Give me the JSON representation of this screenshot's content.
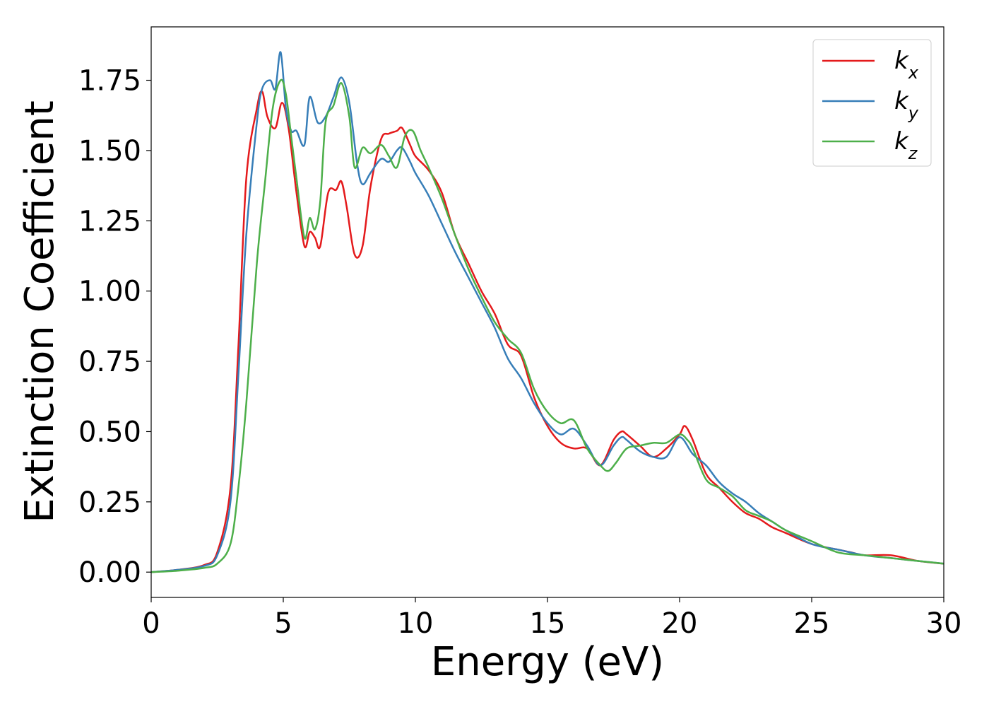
{
  "chart_data": {
    "type": "line",
    "xlabel": "Energy (eV)",
    "ylabel": "Extinction Coefficient",
    "xlim": [
      0,
      30
    ],
    "ylim": [
      -0.09,
      1.94
    ],
    "xticks": [
      0,
      5,
      10,
      15,
      20,
      25,
      30
    ],
    "xtick_labels": [
      "0",
      "5",
      "10",
      "15",
      "20",
      "25",
      "30"
    ],
    "yticks": [
      0,
      0.25,
      0.5,
      0.75,
      1.0,
      1.25,
      1.5,
      1.75
    ],
    "ytick_labels": [
      "0.00",
      "0.25",
      "0.50",
      "0.75",
      "1.00",
      "1.25",
      "1.50",
      "1.75"
    ],
    "grid": false,
    "legend_position": "top-right",
    "series": [
      {
        "name": "k",
        "subscript": "x",
        "color": "#e41a1c",
        "x": [
          0,
          1,
          2,
          2.5,
          3,
          3.3,
          3.6,
          4.0,
          4.2,
          4.4,
          4.7,
          4.95,
          5.2,
          5.5,
          5.8,
          6.0,
          6.2,
          6.4,
          6.7,
          7.0,
          7.2,
          7.4,
          7.7,
          8.0,
          8.3,
          8.7,
          9.0,
          9.3,
          9.5,
          9.8,
          10.0,
          10.5,
          11.0,
          11.5,
          12.0,
          12.5,
          13.0,
          13.5,
          14.0,
          14.5,
          15.0,
          15.5,
          16.0,
          16.5,
          17.0,
          17.5,
          17.8,
          18.0,
          18.5,
          19.0,
          19.5,
          20.0,
          20.2,
          20.5,
          21.0,
          21.5,
          22.0,
          22.5,
          23.0,
          23.5,
          24.0,
          25.0,
          26.0,
          26.5,
          27.0,
          28.0,
          29.0,
          30.0
        ],
        "values": [
          0,
          0.008,
          0.025,
          0.07,
          0.3,
          0.8,
          1.4,
          1.65,
          1.71,
          1.62,
          1.58,
          1.67,
          1.58,
          1.35,
          1.16,
          1.21,
          1.19,
          1.16,
          1.35,
          1.36,
          1.39,
          1.3,
          1.13,
          1.16,
          1.37,
          1.54,
          1.56,
          1.57,
          1.58,
          1.52,
          1.48,
          1.43,
          1.35,
          1.2,
          1.1,
          1.0,
          0.92,
          0.81,
          0.77,
          0.62,
          0.52,
          0.46,
          0.44,
          0.44,
          0.38,
          0.47,
          0.5,
          0.49,
          0.45,
          0.41,
          0.44,
          0.49,
          0.52,
          0.47,
          0.35,
          0.3,
          0.25,
          0.21,
          0.19,
          0.16,
          0.14,
          0.1,
          0.08,
          0.07,
          0.06,
          0.06,
          0.04,
          0.03
        ]
      },
      {
        "name": "k",
        "subscript": "y",
        "color": "#377eb8",
        "x": [
          0,
          1,
          2,
          2.5,
          3,
          3.3,
          3.6,
          4.0,
          4.2,
          4.5,
          4.7,
          4.9,
          5.1,
          5.3,
          5.5,
          5.8,
          6.0,
          6.3,
          6.6,
          6.9,
          7.2,
          7.5,
          7.8,
          8.0,
          8.3,
          8.7,
          9.0,
          9.3,
          9.5,
          9.8,
          10.0,
          10.5,
          11.0,
          11.5,
          12.0,
          12.5,
          13.0,
          13.5,
          14.0,
          14.5,
          15.0,
          15.5,
          16.0,
          16.5,
          17.0,
          17.5,
          17.8,
          18.0,
          18.5,
          19.0,
          19.5,
          20.0,
          20.5,
          21.0,
          21.5,
          22.0,
          22.5,
          23.0,
          23.5,
          24.0,
          25.0,
          26.0,
          27.0,
          28.0,
          29.0,
          30.0
        ],
        "values": [
          0,
          0.008,
          0.022,
          0.06,
          0.25,
          0.7,
          1.2,
          1.6,
          1.72,
          1.75,
          1.72,
          1.85,
          1.65,
          1.57,
          1.57,
          1.52,
          1.69,
          1.6,
          1.62,
          1.69,
          1.76,
          1.67,
          1.45,
          1.38,
          1.42,
          1.47,
          1.46,
          1.5,
          1.51,
          1.46,
          1.42,
          1.34,
          1.24,
          1.14,
          1.05,
          0.96,
          0.87,
          0.76,
          0.69,
          0.6,
          0.53,
          0.49,
          0.51,
          0.45,
          0.38,
          0.45,
          0.48,
          0.47,
          0.43,
          0.41,
          0.41,
          0.48,
          0.42,
          0.38,
          0.32,
          0.28,
          0.25,
          0.21,
          0.18,
          0.15,
          0.1,
          0.08,
          0.06,
          0.05,
          0.04,
          0.03
        ]
      },
      {
        "name": "k",
        "subscript": "z",
        "color": "#4daf4a",
        "x": [
          0,
          1,
          2,
          2.5,
          3,
          3.3,
          3.6,
          4.0,
          4.3,
          4.6,
          4.9,
          5.1,
          5.3,
          5.5,
          5.8,
          6.0,
          6.2,
          6.4,
          6.6,
          6.9,
          7.2,
          7.5,
          7.7,
          8.0,
          8.3,
          8.7,
          9.0,
          9.3,
          9.6,
          9.9,
          10.2,
          10.5,
          11.0,
          11.5,
          12.0,
          12.5,
          13.0,
          13.5,
          14.0,
          14.5,
          15.0,
          15.5,
          16.0,
          16.5,
          17.0,
          17.3,
          17.6,
          18.0,
          18.5,
          19.0,
          19.5,
          20.0,
          20.3,
          20.5,
          21.0,
          21.5,
          22.0,
          22.5,
          23.0,
          23.5,
          24.0,
          25.0,
          26.0,
          27.0,
          28.0,
          29.0,
          30.0
        ],
        "values": [
          0,
          0.005,
          0.015,
          0.03,
          0.1,
          0.3,
          0.6,
          1.1,
          1.38,
          1.65,
          1.75,
          1.7,
          1.55,
          1.4,
          1.19,
          1.26,
          1.22,
          1.32,
          1.6,
          1.66,
          1.74,
          1.62,
          1.44,
          1.51,
          1.49,
          1.52,
          1.48,
          1.44,
          1.55,
          1.57,
          1.5,
          1.44,
          1.33,
          1.2,
          1.08,
          0.98,
          0.89,
          0.83,
          0.78,
          0.65,
          0.57,
          0.53,
          0.54,
          0.44,
          0.38,
          0.36,
          0.39,
          0.44,
          0.45,
          0.46,
          0.46,
          0.49,
          0.47,
          0.44,
          0.33,
          0.3,
          0.27,
          0.22,
          0.2,
          0.18,
          0.15,
          0.11,
          0.07,
          0.06,
          0.05,
          0.04,
          0.03
        ]
      }
    ]
  }
}
